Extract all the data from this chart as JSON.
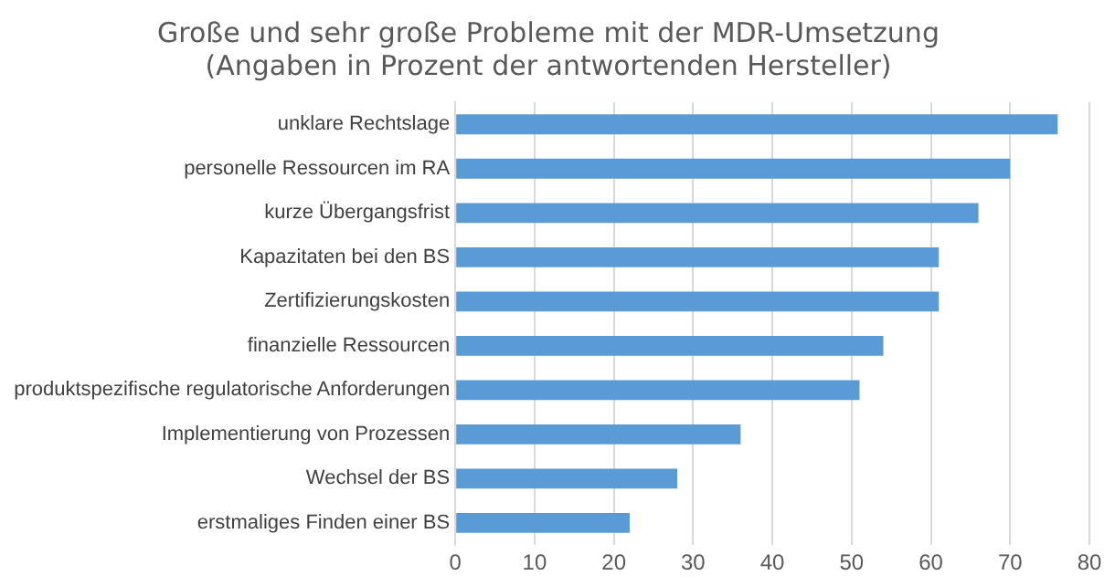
{
  "chart_data": {
    "type": "bar",
    "orientation": "horizontal",
    "title": [
      "Große und sehr große Probleme mit der MDR-Umsetzung",
      "(Angaben in Prozent der antwortenden Hersteller)"
    ],
    "categories": [
      "unklare Rechtslage",
      "personelle Ressourcen im RA",
      "kurze Übergangsfrist",
      "Kapazitaten bei den BS",
      "Zertifizierungskosten",
      "finanzielle Ressourcen",
      "produktspezifische regulatorische Anforderungen",
      "Implementierung von Prozessen",
      "Wechsel der BS",
      "erstmaliges Finden einer BS"
    ],
    "values": [
      76,
      70,
      66,
      61,
      61,
      54,
      51,
      36,
      28,
      22
    ],
    "color": "#5b9bd5",
    "xlim": [
      0,
      80
    ],
    "xticks": [
      0,
      10,
      20,
      30,
      40,
      50,
      60,
      70,
      80
    ],
    "grid": "x",
    "legend": false
  }
}
